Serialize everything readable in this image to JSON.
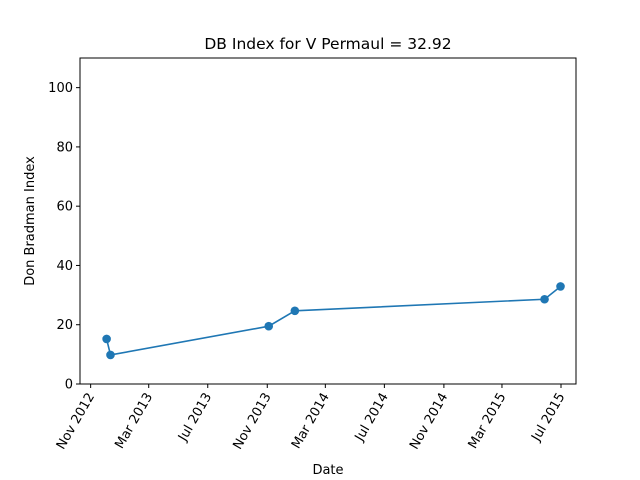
{
  "chart_data": {
    "type": "line",
    "title": "DB Index for V Permaul = 32.92",
    "xlabel": "Date",
    "ylabel": "Don Bradman Index",
    "x_ticks": [
      {
        "date": "2012-11-01",
        "label": "Nov 2012"
      },
      {
        "date": "2013-03-01",
        "label": "Mar 2013"
      },
      {
        "date": "2013-07-01",
        "label": "Jul 2013"
      },
      {
        "date": "2013-11-01",
        "label": "Nov 2013"
      },
      {
        "date": "2014-03-01",
        "label": "Mar 2014"
      },
      {
        "date": "2014-07-01",
        "label": "Jul 2014"
      },
      {
        "date": "2014-11-01",
        "label": "Nov 2014"
      },
      {
        "date": "2015-03-01",
        "label": "Mar 2015"
      },
      {
        "date": "2015-07-01",
        "label": "Jul 2015"
      }
    ],
    "y_ticks": [
      0,
      20,
      40,
      60,
      80,
      100
    ],
    "xlim": [
      "2012-10-10",
      "2015-08-01"
    ],
    "ylim": [
      0,
      110
    ],
    "grid": false,
    "series": [
      {
        "color": "#1f77b4",
        "points": [
          {
            "x": "2012-12-04",
            "y": 15.2
          },
          {
            "x": "2012-12-12",
            "y": 9.8
          },
          {
            "x": "2013-11-04",
            "y": 19.5
          },
          {
            "x": "2013-12-28",
            "y": 24.7
          },
          {
            "x": "2015-05-28",
            "y": 28.6
          },
          {
            "x": "2015-06-30",
            "y": 32.92
          }
        ]
      }
    ]
  }
}
